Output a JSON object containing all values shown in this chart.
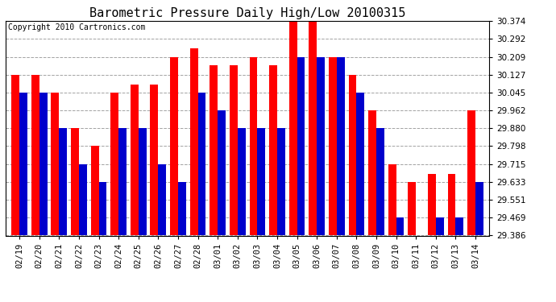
{
  "title": "Barometric Pressure Daily High/Low 20100315",
  "copyright": "Copyright 2010 Cartronics.com",
  "dates": [
    "02/19",
    "02/20",
    "02/21",
    "02/22",
    "02/23",
    "02/24",
    "02/25",
    "02/26",
    "02/27",
    "02/28",
    "03/01",
    "03/02",
    "03/03",
    "03/04",
    "03/05",
    "03/06",
    "03/07",
    "03/08",
    "03/09",
    "03/10",
    "03/11",
    "03/12",
    "03/13",
    "03/14"
  ],
  "highs": [
    30.127,
    30.127,
    30.045,
    29.88,
    29.798,
    30.045,
    30.082,
    30.082,
    30.209,
    30.25,
    30.172,
    30.172,
    30.209,
    30.172,
    30.374,
    30.374,
    30.209,
    30.127,
    29.962,
    29.715,
    29.633,
    29.67,
    29.67,
    29.962
  ],
  "lows": [
    30.045,
    30.045,
    29.88,
    29.715,
    29.633,
    29.88,
    29.88,
    29.715,
    29.633,
    30.045,
    29.962,
    29.88,
    29.88,
    29.88,
    30.209,
    30.209,
    30.209,
    30.045,
    29.88,
    29.469,
    29.386,
    29.469,
    29.469,
    29.633
  ],
  "high_color": "#ff0000",
  "low_color": "#0000cc",
  "background_color": "#ffffff",
  "grid_color": "#999999",
  "yticks": [
    29.386,
    29.469,
    29.551,
    29.633,
    29.715,
    29.798,
    29.88,
    29.962,
    30.045,
    30.127,
    30.209,
    30.292,
    30.374
  ],
  "ymin": 29.386,
  "ymax": 30.374,
  "title_fontsize": 11,
  "copyright_fontsize": 7,
  "tick_fontsize": 7.5,
  "bar_width": 0.4
}
